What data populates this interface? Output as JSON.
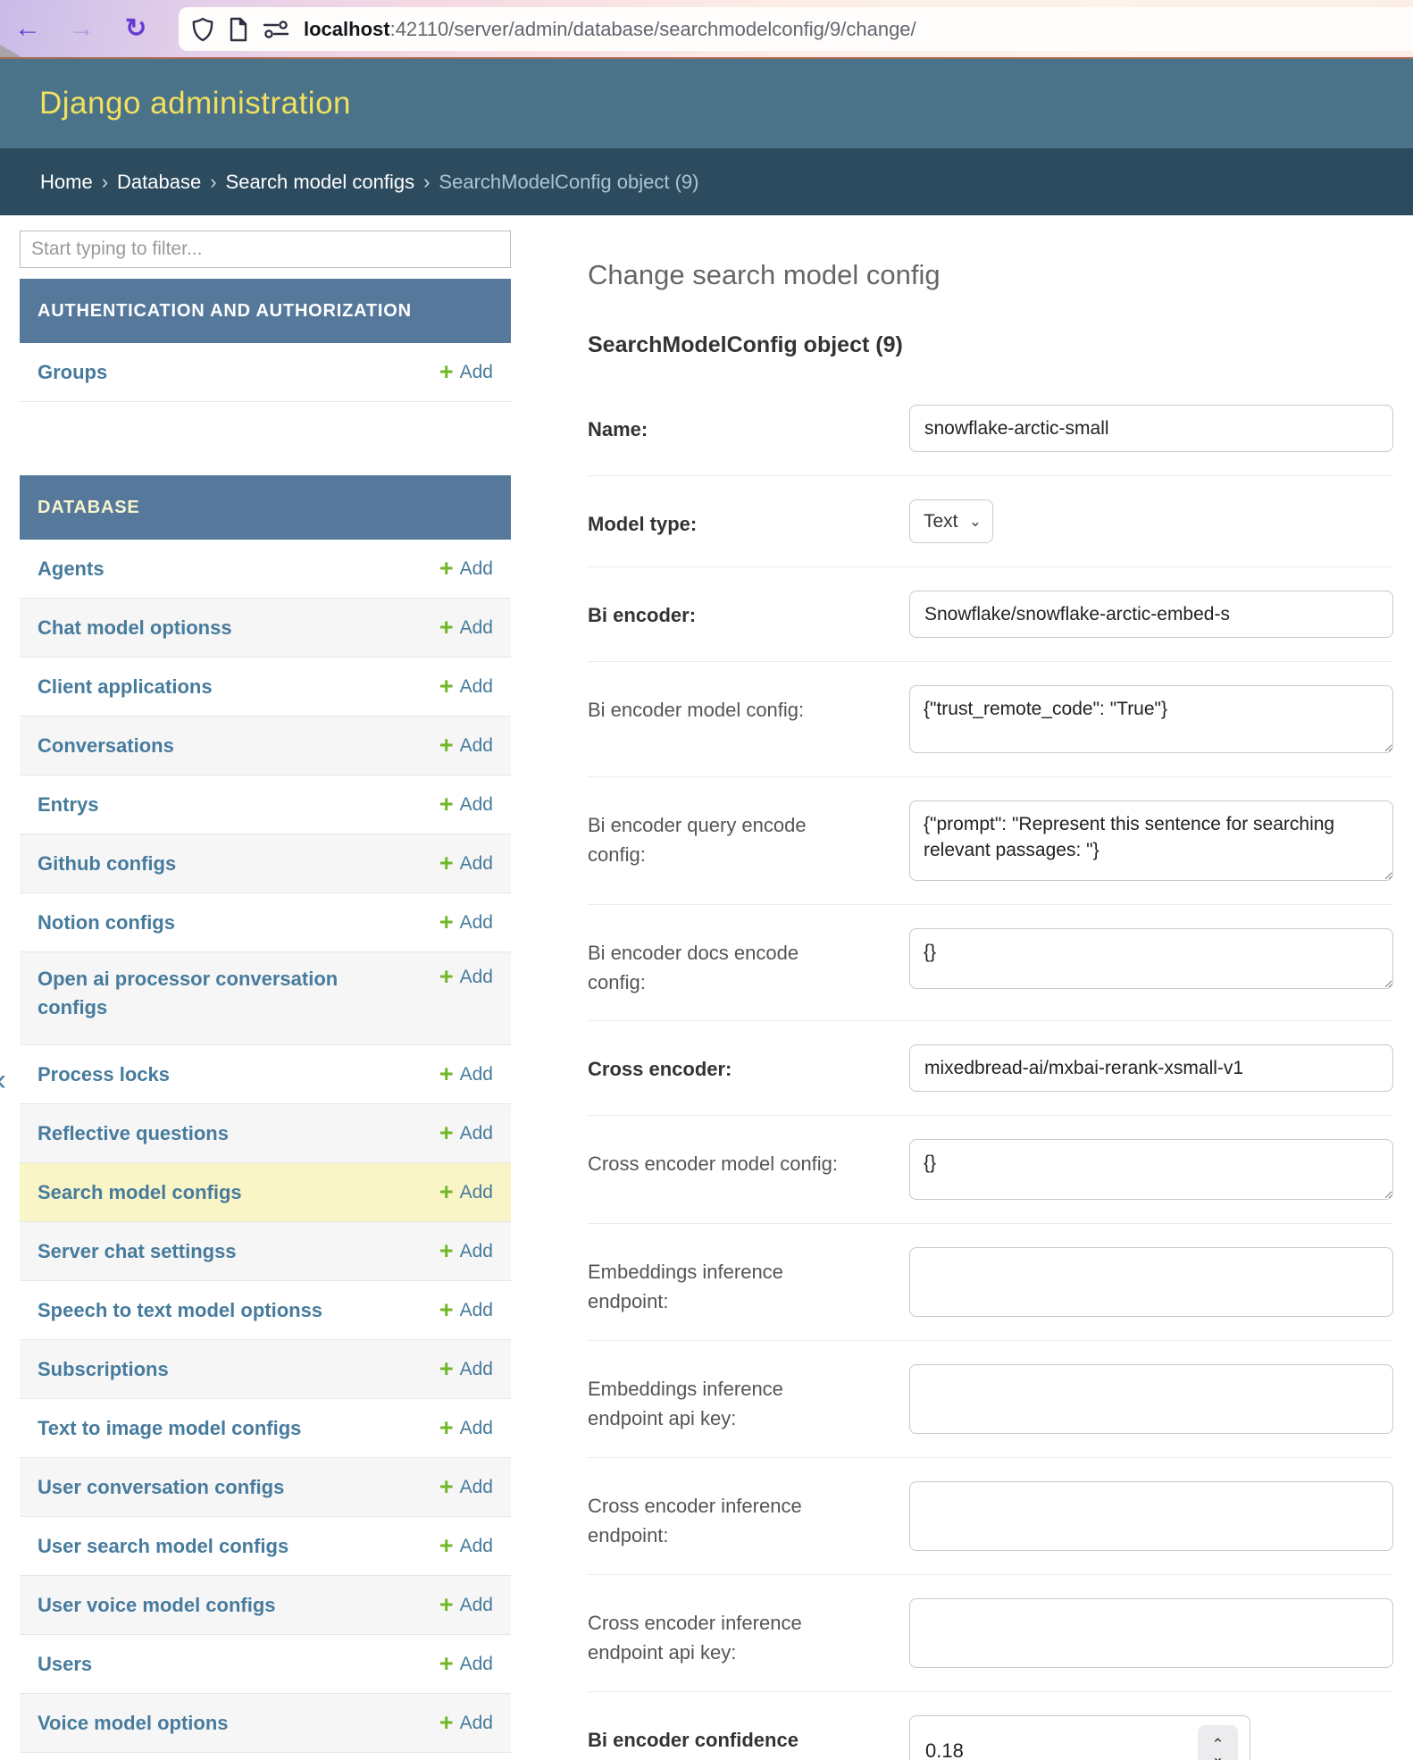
{
  "browser": {
    "url_host": "localhost",
    "url_path": ":42110/server/admin/database/searchmodelconfig/9/change/"
  },
  "header": {
    "title": "Django administration"
  },
  "breadcrumbs": {
    "separator": "›",
    "items": [
      "Home",
      "Database",
      "Search model configs"
    ],
    "current": "SearchModelConfig object (9)"
  },
  "sidebar": {
    "filter_placeholder": "Start typing to filter...",
    "collapse_glyph": "«",
    "add_label": "Add",
    "plus_glyph": "+",
    "sections": [
      {
        "title": "AUTHENTICATION AND AUTHORIZATION",
        "current_app": false,
        "items": [
          {
            "label": "Groups"
          }
        ]
      },
      {
        "title": "DATABASE",
        "current_app": true,
        "items": [
          {
            "label": "Agents"
          },
          {
            "label": "Chat model optionss"
          },
          {
            "label": "Client applications"
          },
          {
            "label": "Conversations"
          },
          {
            "label": "Entrys"
          },
          {
            "label": "Github configs"
          },
          {
            "label": "Notion configs"
          },
          {
            "label": "Open ai processor conversation configs",
            "tall": true
          },
          {
            "label": "Process locks"
          },
          {
            "label": "Reflective questions"
          },
          {
            "label": "Search model configs",
            "highlighted": true
          },
          {
            "label": "Server chat settingss"
          },
          {
            "label": "Speech to text model optionss"
          },
          {
            "label": "Subscriptions"
          },
          {
            "label": "Text to image model configs"
          },
          {
            "label": "User conversation configs"
          },
          {
            "label": "User search model configs"
          },
          {
            "label": "User voice model configs"
          },
          {
            "label": "Users"
          },
          {
            "label": "Voice model options"
          }
        ]
      }
    ]
  },
  "main": {
    "page_title": "Change search model config",
    "object_title": "SearchModelConfig object (9)",
    "select_chevron": "⌄",
    "spinner_up": "⌃",
    "spinner_down": "⌄",
    "fields": [
      {
        "label": "Name:",
        "required": true,
        "type": "text",
        "value": "snowflake-arctic-small"
      },
      {
        "label": "Model type:",
        "required": true,
        "type": "select",
        "value": "Text"
      },
      {
        "label": "Bi encoder:",
        "required": true,
        "type": "text",
        "value": "Snowflake/snowflake-arctic-embed-s"
      },
      {
        "label": "Bi encoder model config:",
        "required": false,
        "type": "textarea",
        "value": "{\"trust_remote_code\": \"True\"}"
      },
      {
        "label": "Bi encoder query encode config:",
        "required": false,
        "type": "textarea",
        "value": "{\"prompt\": \"Represent this sentence for searching relevant passages: \"}"
      },
      {
        "label": "Bi encoder docs encode config:",
        "required": false,
        "type": "textarea",
        "value": "{}"
      },
      {
        "label": "Cross encoder:",
        "required": true,
        "type": "text",
        "value": "mixedbread-ai/mxbai-rerank-xsmall-v1"
      },
      {
        "label": "Cross encoder model config:",
        "required": false,
        "type": "textarea",
        "value": "{}"
      },
      {
        "label": "Embeddings inference endpoint:",
        "required": false,
        "type": "empty",
        "value": ""
      },
      {
        "label": "Embeddings inference endpoint api key:",
        "required": false,
        "type": "empty",
        "value": ""
      },
      {
        "label": "Cross encoder inference endpoint:",
        "required": false,
        "type": "empty",
        "value": ""
      },
      {
        "label": "Cross encoder inference endpoint api key:",
        "required": false,
        "type": "empty",
        "value": ""
      },
      {
        "label": "Bi encoder confidence threshold:",
        "required": true,
        "type": "number",
        "value": "0.18"
      }
    ]
  },
  "colors": {
    "header_bg": "#4a7289",
    "header_title": "#f1e05e",
    "breadcrumbs_bg": "#2d4b5e",
    "caption_bg": "#56799b",
    "caption_current_app_text": "#f8f4cd",
    "sidebar_link": "#477b9d",
    "add_plus_green": "#72b62b",
    "highlight_row": "#faf5c6",
    "accent_line": "#a96a52",
    "back_arrow": "#5a3fd0",
    "forward_arrow": "#ab9de2",
    "reload_arrow": "#653bd6"
  }
}
